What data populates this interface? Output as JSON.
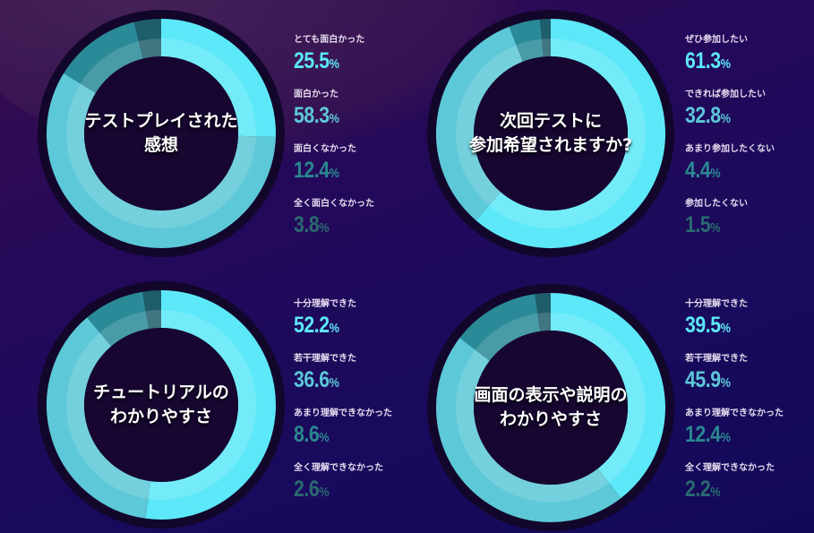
{
  "colors": [
    "#5ce8f8",
    "#5cc8d8",
    "#2a8a98",
    "#1e5e6a"
  ],
  "value_colors": [
    "#5ce8f8",
    "#5cc8d8",
    "#2a8890",
    "#2a6a70"
  ],
  "chart_data": [
    {
      "type": "pie",
      "title": "テストプレイされた感想",
      "title_lines": [
        "テストプレイされた",
        "感想"
      ],
      "categories": [
        "とても面白かった",
        "面白かった",
        "面白くなかった",
        "全く面白くなかった"
      ],
      "values": [
        25.5,
        58.3,
        12.4,
        3.8
      ],
      "display": [
        "25.5",
        "58.3",
        "12.4",
        "3.8"
      ],
      "unit": "%"
    },
    {
      "type": "pie",
      "title": "次回テストに参加希望されますか?",
      "title_lines": [
        "次回テストに",
        "参加希望されますか?"
      ],
      "categories": [
        "ぜひ参加したい",
        "できれば参加したい",
        "あまり参加したくない",
        "参加したくない"
      ],
      "values": [
        61.3,
        32.8,
        4.4,
        1.5
      ],
      "display": [
        "61.3",
        "32.8",
        "4.4",
        "1.5"
      ],
      "unit": "%"
    },
    {
      "type": "pie",
      "title": "チュートリアルのわかりやすさ",
      "title_lines": [
        "チュートリアルの",
        "わかりやすさ"
      ],
      "categories": [
        "十分理解できた",
        "若干理解できた",
        "あまり理解できなかった",
        "全く理解できなかった"
      ],
      "values": [
        52.2,
        36.6,
        8.6,
        2.6
      ],
      "display": [
        "52.2",
        "36.6",
        "8.6",
        "2.6"
      ],
      "unit": "%"
    },
    {
      "type": "pie",
      "title": "画面の表示や説明のわかりやすさ",
      "title_lines": [
        "画面の表示や説明の",
        "わかりやすさ"
      ],
      "categories": [
        "十分理解できた",
        "若干理解できた",
        "あまり理解できなかった",
        "全く理解できなかった"
      ],
      "values": [
        39.5,
        45.9,
        12.4,
        2.2
      ],
      "display": [
        "39.5",
        "45.9",
        "12.4",
        "2.2"
      ],
      "unit": "%"
    }
  ]
}
